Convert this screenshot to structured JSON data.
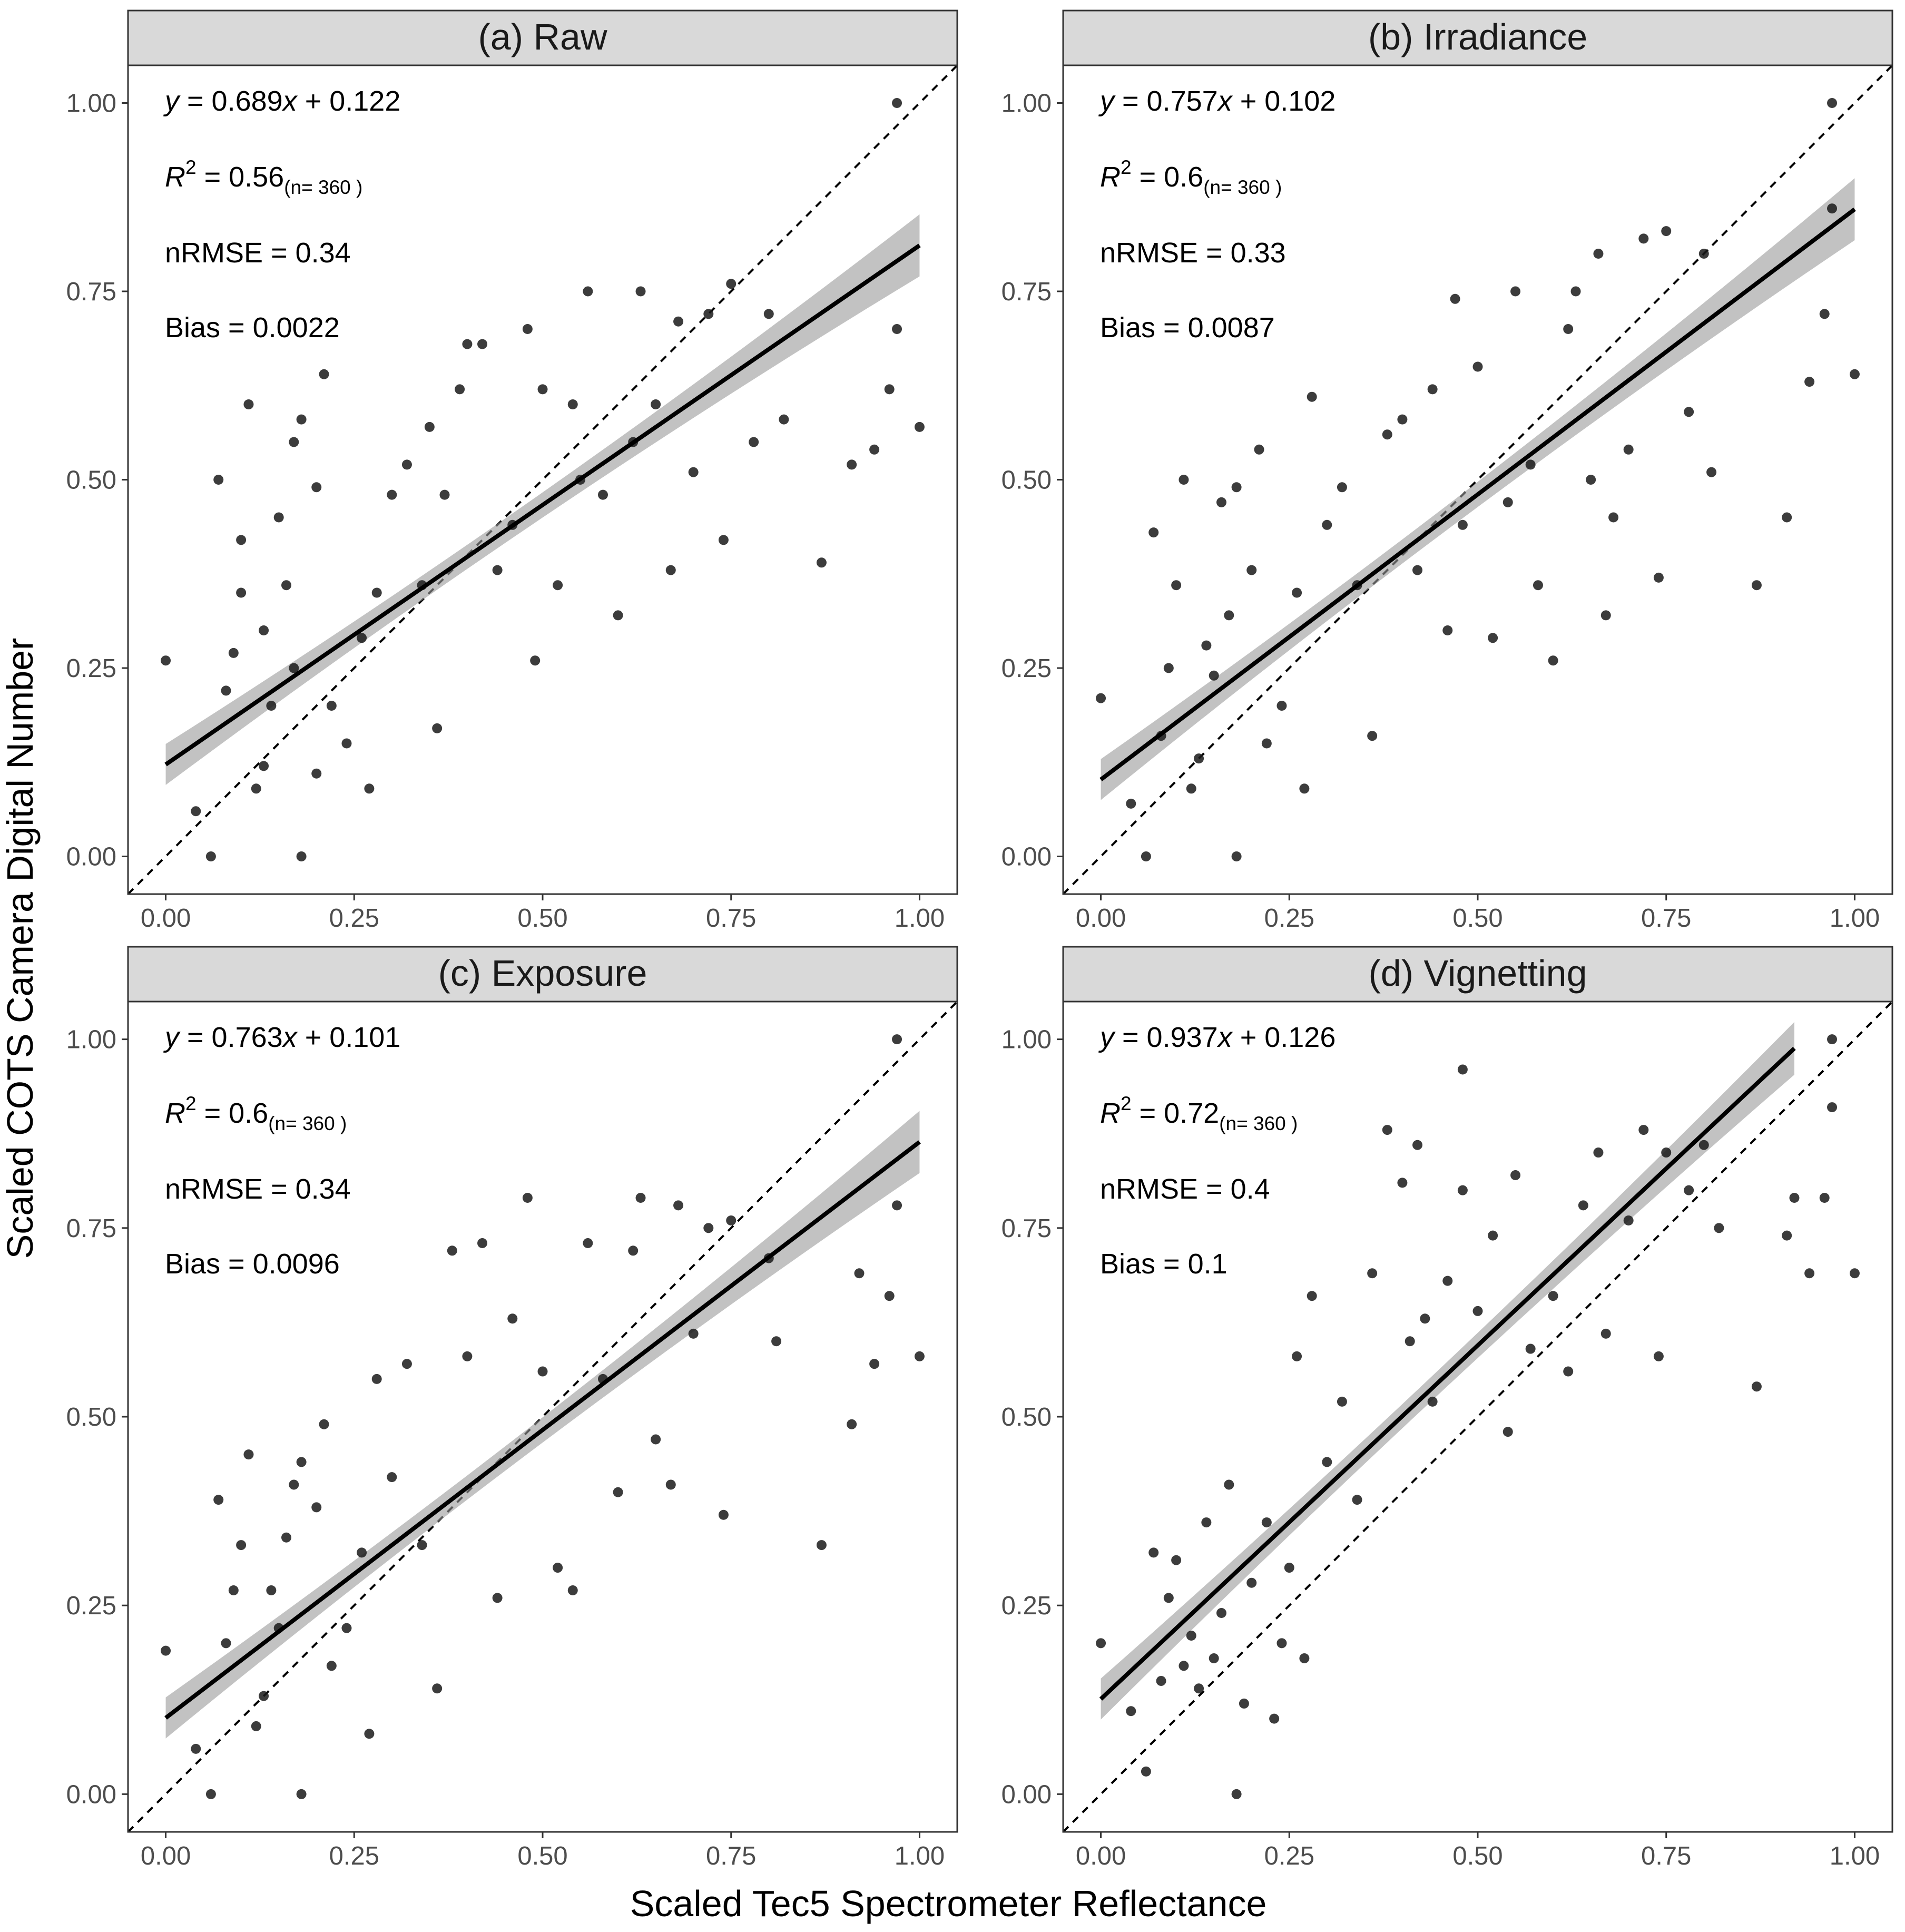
{
  "chart_data": {
    "type": "scatter",
    "title": "",
    "xlabel": "Scaled Tec5 Spectrometer Reflectance",
    "ylabel": "Scaled COTS Camera Digital Number",
    "xlim": [
      -0.05,
      1.05
    ],
    "ylim": [
      -0.05,
      1.05
    ],
    "ticks": [
      0,
      0.25,
      0.5,
      0.75,
      1.0
    ],
    "tick_labels": [
      "0.00",
      "0.25",
      "0.50",
      "0.75",
      "1.00"
    ],
    "reference_line": "1:1 dashed",
    "panels": [
      {
        "strip": "(a) Raw",
        "equation": {
          "prefix": "y",
          "text": "= 0.689",
          "xvar": "x",
          "rest": " + 0.122"
        },
        "slope": 0.689,
        "intercept": 0.122,
        "r2": {
          "label": "R",
          "sup": "2",
          "value": " = 0.56",
          "n": "(n= 360 )"
        },
        "nrmse": "nRMSE = 0.34",
        "bias": "Bias = 0.0022",
        "fit_range": [
          0,
          1.0
        ],
        "points": [
          [
            0,
            0.26
          ],
          [
            0.04,
            0.06
          ],
          [
            0.06,
            0.0
          ],
          [
            0.07,
            0.5
          ],
          [
            0.08,
            0.22
          ],
          [
            0.09,
            0.27
          ],
          [
            0.1,
            0.42
          ],
          [
            0.11,
            0.6
          ],
          [
            0.1,
            0.35
          ],
          [
            0.12,
            0.09
          ],
          [
            0.13,
            0.12
          ],
          [
            0.13,
            0.3
          ],
          [
            0.14,
            0.2
          ],
          [
            0.15,
            0.45
          ],
          [
            0.16,
            0.36
          ],
          [
            0.17,
            0.55
          ],
          [
            0.17,
            0.25
          ],
          [
            0.18,
            0.58
          ],
          [
            0.18,
            0.0
          ],
          [
            0.2,
            0.49
          ],
          [
            0.21,
            0.64
          ],
          [
            0.2,
            0.11
          ],
          [
            0.22,
            0.2
          ],
          [
            0.24,
            0.15
          ],
          [
            0.26,
            0.29
          ],
          [
            0.27,
            0.09
          ],
          [
            0.28,
            0.35
          ],
          [
            0.3,
            0.48
          ],
          [
            0.32,
            0.52
          ],
          [
            0.34,
            0.36
          ],
          [
            0.35,
            0.57
          ],
          [
            0.36,
            0.17
          ],
          [
            0.37,
            0.48
          ],
          [
            0.39,
            0.62
          ],
          [
            0.4,
            0.68
          ],
          [
            0.42,
            0.68
          ],
          [
            0.44,
            0.38
          ],
          [
            0.46,
            0.44
          ],
          [
            0.48,
            0.7
          ],
          [
            0.49,
            0.26
          ],
          [
            0.5,
            0.62
          ],
          [
            0.52,
            0.36
          ],
          [
            0.54,
            0.6
          ],
          [
            0.55,
            0.5
          ],
          [
            0.56,
            0.75
          ],
          [
            0.58,
            0.48
          ],
          [
            0.6,
            0.32
          ],
          [
            0.62,
            0.55
          ],
          [
            0.63,
            0.75
          ],
          [
            0.65,
            0.6
          ],
          [
            0.67,
            0.38
          ],
          [
            0.68,
            0.71
          ],
          [
            0.7,
            0.51
          ],
          [
            0.72,
            0.72
          ],
          [
            0.74,
            0.42
          ],
          [
            0.75,
            0.76
          ],
          [
            0.78,
            0.55
          ],
          [
            0.8,
            0.72
          ],
          [
            0.82,
            0.58
          ],
          [
            0.87,
            0.39
          ],
          [
            0.91,
            0.52
          ],
          [
            0.94,
            0.54
          ],
          [
            0.96,
            0.62
          ],
          [
            0.97,
            0.7
          ],
          [
            0.97,
            1.0
          ],
          [
            1.0,
            0.57
          ]
        ]
      },
      {
        "strip": "(b) Irradiance",
        "equation": {
          "prefix": "y",
          "text": "= 0.757",
          "xvar": "x",
          "rest": " + 0.102"
        },
        "slope": 0.757,
        "intercept": 0.102,
        "r2": {
          "label": "R",
          "sup": "2",
          "value": " = 0.6",
          "n": "(n= 360 )"
        },
        "nrmse": "nRMSE = 0.33",
        "bias": "Bias = 0.0087",
        "fit_range": [
          0,
          1.0
        ],
        "points": [
          [
            0,
            0.21
          ],
          [
            0.04,
            0.07
          ],
          [
            0.06,
            0.0
          ],
          [
            0.07,
            0.43
          ],
          [
            0.08,
            0.16
          ],
          [
            0.09,
            0.25
          ],
          [
            0.1,
            0.36
          ],
          [
            0.11,
            0.5
          ],
          [
            0.12,
            0.09
          ],
          [
            0.13,
            0.13
          ],
          [
            0.14,
            0.28
          ],
          [
            0.15,
            0.24
          ],
          [
            0.16,
            0.47
          ],
          [
            0.17,
            0.32
          ],
          [
            0.18,
            0.49
          ],
          [
            0.18,
            0.0
          ],
          [
            0.2,
            0.38
          ],
          [
            0.21,
            0.54
          ],
          [
            0.22,
            0.15
          ],
          [
            0.24,
            0.2
          ],
          [
            0.26,
            0.35
          ],
          [
            0.27,
            0.09
          ],
          [
            0.28,
            0.61
          ],
          [
            0.3,
            0.44
          ],
          [
            0.32,
            0.49
          ],
          [
            0.34,
            0.36
          ],
          [
            0.36,
            0.16
          ],
          [
            0.38,
            0.56
          ],
          [
            0.4,
            0.58
          ],
          [
            0.42,
            0.38
          ],
          [
            0.44,
            0.62
          ],
          [
            0.46,
            0.3
          ],
          [
            0.47,
            0.74
          ],
          [
            0.48,
            0.44
          ],
          [
            0.5,
            0.65
          ],
          [
            0.52,
            0.29
          ],
          [
            0.54,
            0.47
          ],
          [
            0.55,
            0.75
          ],
          [
            0.57,
            0.52
          ],
          [
            0.58,
            0.36
          ],
          [
            0.6,
            0.26
          ],
          [
            0.62,
            0.7
          ],
          [
            0.63,
            0.75
          ],
          [
            0.65,
            0.5
          ],
          [
            0.66,
            0.8
          ],
          [
            0.67,
            0.32
          ],
          [
            0.68,
            0.45
          ],
          [
            0.7,
            0.54
          ],
          [
            0.72,
            0.82
          ],
          [
            0.74,
            0.37
          ],
          [
            0.75,
            0.83
          ],
          [
            0.78,
            0.59
          ],
          [
            0.8,
            0.8
          ],
          [
            0.81,
            0.51
          ],
          [
            0.87,
            0.36
          ],
          [
            0.91,
            0.45
          ],
          [
            0.94,
            0.63
          ],
          [
            0.96,
            0.72
          ],
          [
            0.97,
            0.86
          ],
          [
            0.97,
            1.0
          ],
          [
            1.0,
            0.64
          ]
        ]
      },
      {
        "strip": "(c) Exposure",
        "equation": {
          "prefix": "y",
          "text": "= 0.763",
          "xvar": "x",
          "rest": " + 0.101"
        },
        "slope": 0.763,
        "intercept": 0.101,
        "r2": {
          "label": "R",
          "sup": "2",
          "value": " = 0.6",
          "n": "(n= 360 )"
        },
        "nrmse": "nRMSE = 0.34",
        "bias": "Bias = 0.0096",
        "fit_range": [
          0,
          1.0
        ],
        "points": [
          [
            0,
            0.19
          ],
          [
            0.04,
            0.06
          ],
          [
            0.06,
            0.0
          ],
          [
            0.07,
            0.39
          ],
          [
            0.08,
            0.2
          ],
          [
            0.09,
            0.27
          ],
          [
            0.1,
            0.33
          ],
          [
            0.11,
            0.45
          ],
          [
            0.12,
            0.09
          ],
          [
            0.13,
            0.13
          ],
          [
            0.14,
            0.27
          ],
          [
            0.15,
            0.22
          ],
          [
            0.16,
            0.34
          ],
          [
            0.17,
            0.41
          ],
          [
            0.18,
            0.44
          ],
          [
            0.18,
            0.0
          ],
          [
            0.2,
            0.38
          ],
          [
            0.21,
            0.49
          ],
          [
            0.22,
            0.17
          ],
          [
            0.24,
            0.22
          ],
          [
            0.26,
            0.32
          ],
          [
            0.27,
            0.08
          ],
          [
            0.28,
            0.55
          ],
          [
            0.3,
            0.42
          ],
          [
            0.32,
            0.57
          ],
          [
            0.34,
            0.33
          ],
          [
            0.36,
            0.14
          ],
          [
            0.38,
            0.72
          ],
          [
            0.4,
            0.58
          ],
          [
            0.42,
            0.73
          ],
          [
            0.44,
            0.26
          ],
          [
            0.46,
            0.63
          ],
          [
            0.48,
            0.79
          ],
          [
            0.5,
            0.56
          ],
          [
            0.52,
            0.3
          ],
          [
            0.54,
            0.27
          ],
          [
            0.56,
            0.73
          ],
          [
            0.58,
            0.55
          ],
          [
            0.6,
            0.4
          ],
          [
            0.62,
            0.72
          ],
          [
            0.63,
            0.79
          ],
          [
            0.65,
            0.47
          ],
          [
            0.67,
            0.41
          ],
          [
            0.68,
            0.78
          ],
          [
            0.7,
            0.61
          ],
          [
            0.72,
            0.75
          ],
          [
            0.74,
            0.37
          ],
          [
            0.75,
            0.76
          ],
          [
            0.8,
            0.71
          ],
          [
            0.81,
            0.6
          ],
          [
            0.87,
            0.33
          ],
          [
            0.91,
            0.49
          ],
          [
            0.92,
            0.69
          ],
          [
            0.94,
            0.57
          ],
          [
            0.96,
            0.66
          ],
          [
            0.97,
            0.78
          ],
          [
            0.97,
            1.0
          ],
          [
            1.0,
            0.58
          ]
        ]
      },
      {
        "strip": "(d) Vignetting",
        "equation": {
          "prefix": "y",
          "text": "= 0.937",
          "xvar": "x",
          "rest": " + 0.126"
        },
        "slope": 0.937,
        "intercept": 0.126,
        "r2": {
          "label": "R",
          "sup": "2",
          "value": " = 0.72",
          "n": "(n= 360 )"
        },
        "nrmse": "nRMSE = 0.4",
        "bias": "Bias = 0.1",
        "fit_range": [
          0,
          0.92
        ],
        "points": [
          [
            0,
            0.2
          ],
          [
            0.04,
            0.11
          ],
          [
            0.06,
            0.03
          ],
          [
            0.07,
            0.32
          ],
          [
            0.08,
            0.15
          ],
          [
            0.09,
            0.26
          ],
          [
            0.1,
            0.31
          ],
          [
            0.11,
            0.17
          ],
          [
            0.12,
            0.21
          ],
          [
            0.13,
            0.14
          ],
          [
            0.14,
            0.36
          ],
          [
            0.15,
            0.18
          ],
          [
            0.16,
            0.24
          ],
          [
            0.17,
            0.41
          ],
          [
            0.18,
            0.0
          ],
          [
            0.19,
            0.12
          ],
          [
            0.2,
            0.28
          ],
          [
            0.22,
            0.36
          ],
          [
            0.23,
            0.1
          ],
          [
            0.24,
            0.2
          ],
          [
            0.25,
            0.3
          ],
          [
            0.26,
            0.58
          ],
          [
            0.27,
            0.18
          ],
          [
            0.28,
            0.66
          ],
          [
            0.3,
            0.44
          ],
          [
            0.32,
            0.52
          ],
          [
            0.34,
            0.39
          ],
          [
            0.36,
            0.69
          ],
          [
            0.38,
            0.88
          ],
          [
            0.4,
            0.81
          ],
          [
            0.41,
            0.6
          ],
          [
            0.42,
            0.86
          ],
          [
            0.43,
            0.63
          ],
          [
            0.44,
            0.52
          ],
          [
            0.46,
            0.68
          ],
          [
            0.48,
            0.8
          ],
          [
            0.48,
            0.96
          ],
          [
            0.5,
            0.64
          ],
          [
            0.52,
            0.74
          ],
          [
            0.54,
            0.48
          ],
          [
            0.55,
            0.82
          ],
          [
            0.57,
            0.59
          ],
          [
            0.6,
            0.66
          ],
          [
            0.62,
            0.56
          ],
          [
            0.64,
            0.78
          ],
          [
            0.66,
            0.85
          ],
          [
            0.67,
            0.61
          ],
          [
            0.7,
            0.76
          ],
          [
            0.72,
            0.88
          ],
          [
            0.74,
            0.58
          ],
          [
            0.75,
            0.85
          ],
          [
            0.78,
            0.8
          ],
          [
            0.8,
            0.86
          ],
          [
            0.82,
            0.75
          ],
          [
            0.87,
            0.54
          ],
          [
            0.91,
            0.74
          ],
          [
            0.92,
            0.79
          ],
          [
            0.94,
            0.69
          ],
          [
            0.96,
            0.79
          ],
          [
            0.97,
            0.91
          ],
          [
            0.97,
            1.0
          ],
          [
            1.0,
            0.69
          ]
        ]
      }
    ]
  }
}
